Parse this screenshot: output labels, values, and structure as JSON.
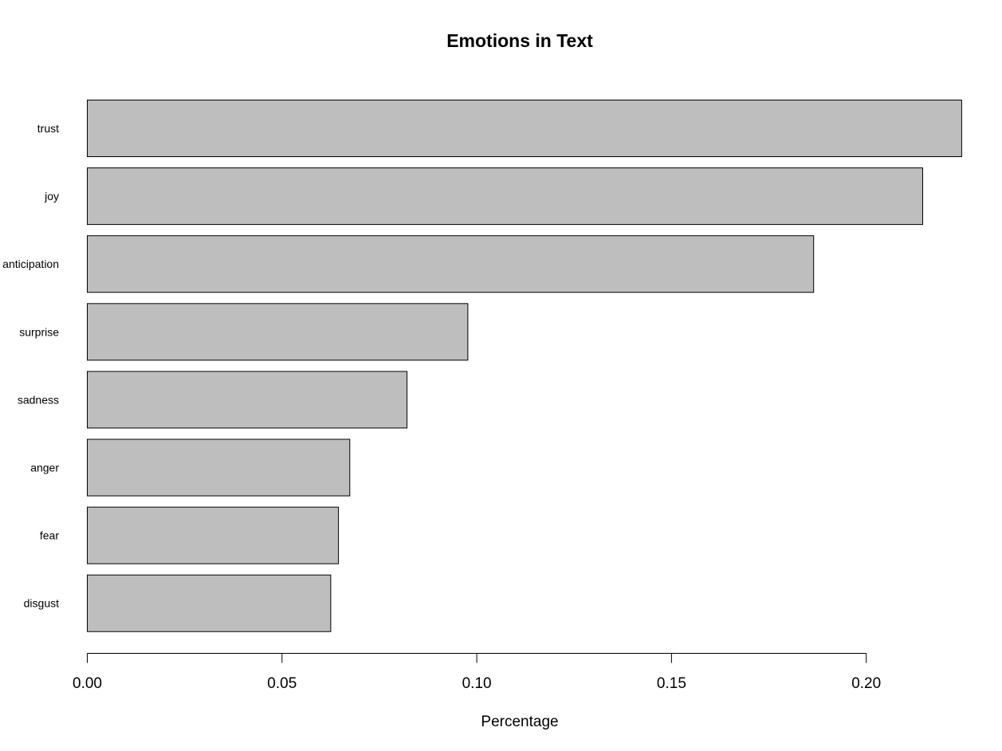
{
  "chart_data": {
    "type": "bar",
    "orientation": "horizontal",
    "title": "Emotions in Text",
    "xlabel": "Percentage",
    "ylabel": "",
    "categories": [
      "trust",
      "joy",
      "anticipation",
      "surprise",
      "sadness",
      "anger",
      "fear",
      "disgust"
    ],
    "values": [
      0.2245,
      0.2145,
      0.1865,
      0.0977,
      0.0821,
      0.0674,
      0.0645,
      0.0625
    ],
    "xlim": [
      0,
      0.2245
    ],
    "xticks": [
      0.0,
      0.05,
      0.1,
      0.15,
      0.2
    ],
    "xtick_labels": [
      "0.00",
      "0.05",
      "0.10",
      "0.15",
      "0.20"
    ],
    "grid": false,
    "legend": "none",
    "colors": {
      "bar_fill": "#bebebe",
      "bar_stroke": "#000000"
    }
  }
}
